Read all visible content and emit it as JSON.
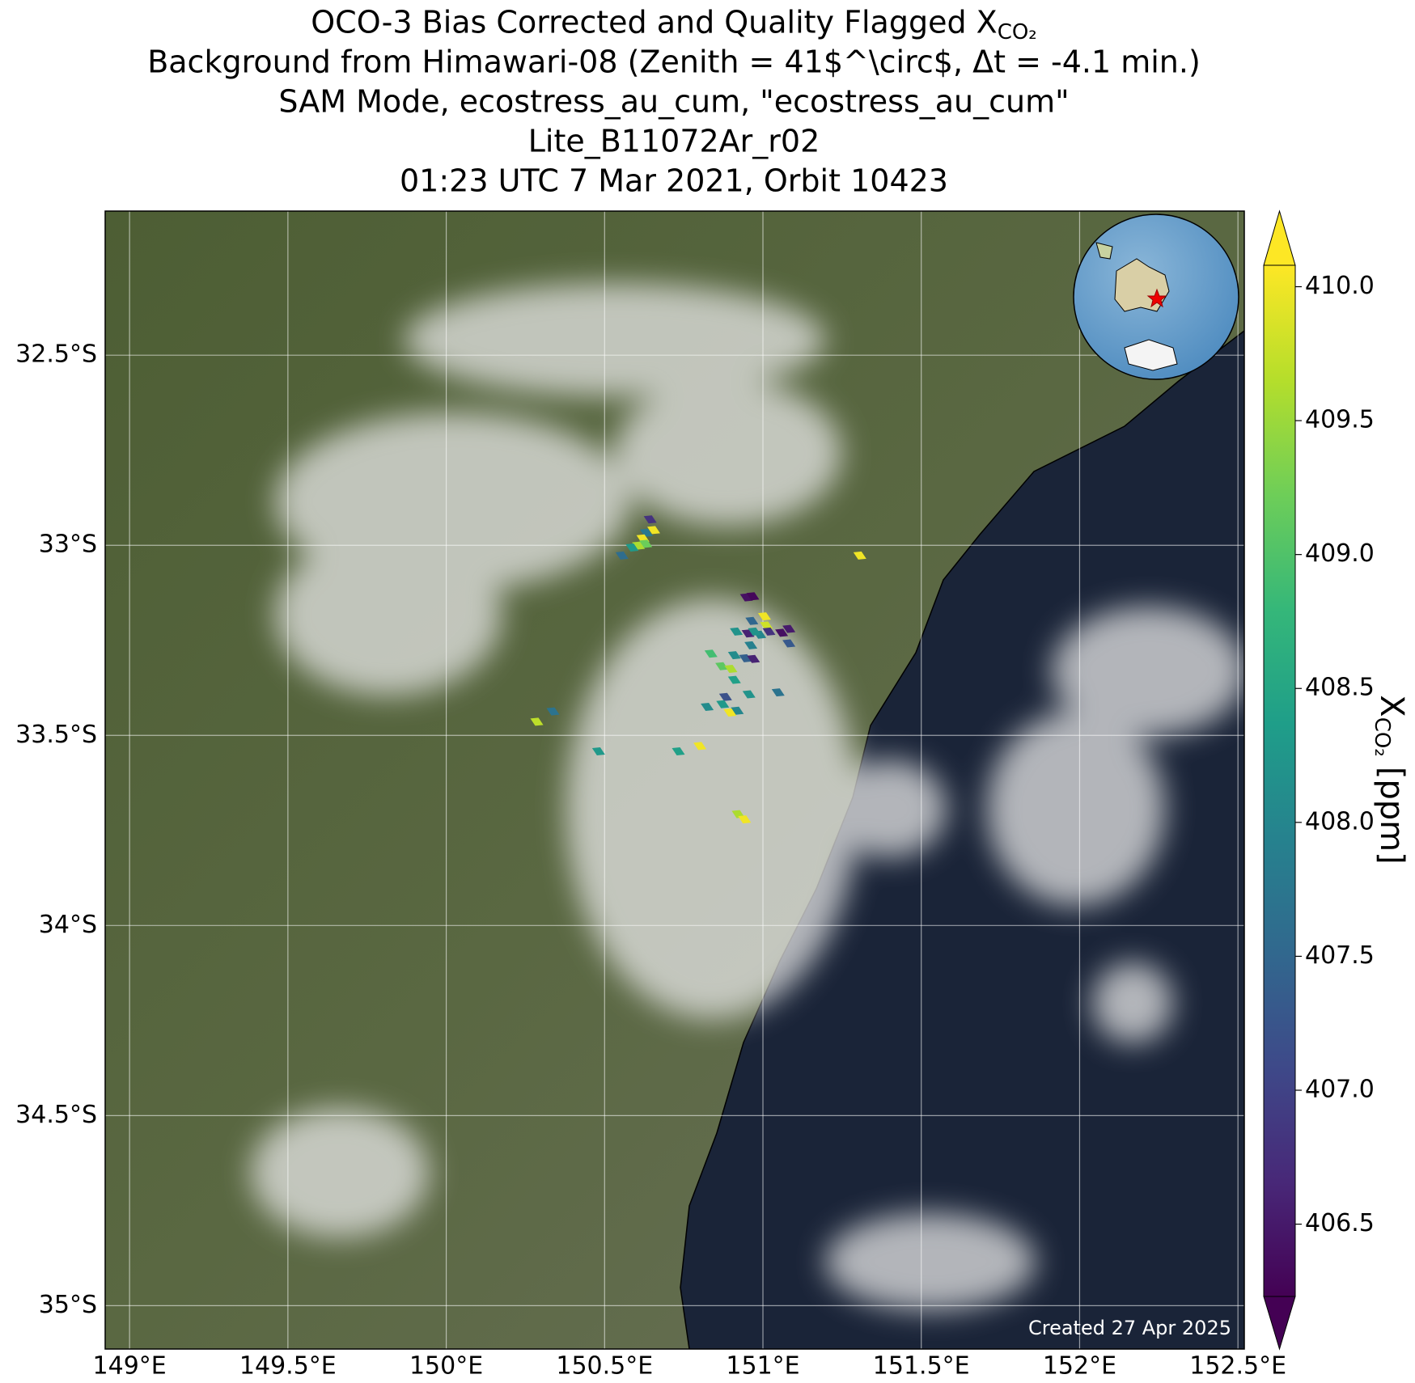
{
  "chart_data": {
    "type": "scatter",
    "title": [
      "OCO-3 Bias Corrected and Quality Flagged X",
      "Background from Himawari-08 (Zenith = 41$^\\circ$, Δt = -4.1 min.)",
      "SAM Mode, ecostress_au_cum, \"ecostress_au_cum\"",
      "Lite_B11072Ar_r02",
      "01:23 UTC 7 Mar 2021, Orbit 10423"
    ],
    "title_subscript": "CO₂",
    "colorbar_label": {
      "symbol": "X",
      "subscript": "CO₂",
      "unit": "[ppm]"
    },
    "footer": "Created 27 Apr 2025",
    "colormap": "viridis",
    "clim": [
      406.23,
      410.08
    ],
    "cticks": [
      406.5,
      {
        "value": 407,
        "label": "407.0"
      },
      407.5,
      {
        "value": 408,
        "label": "408.0"
      },
      408.5,
      {
        "value": 409,
        "label": "409.0"
      },
      409.5,
      {
        "value": 410,
        "label": "410.0"
      }
    ],
    "xlim": [
      148.923,
      152.52
    ],
    "ylim": [
      -35.114,
      -32.121
    ],
    "xticks": [
      {
        "value": 149,
        "label": "149°E"
      },
      {
        "value": 149.5,
        "label": "149.5°E"
      },
      {
        "value": 150,
        "label": "150°E"
      },
      {
        "value": 150.5,
        "label": "150.5°E"
      },
      {
        "value": 151,
        "label": "151°E"
      },
      {
        "value": 151.5,
        "label": "151.5°E"
      },
      {
        "value": 152,
        "label": "152°E"
      },
      {
        "value": 152.5,
        "label": "152.5°E"
      }
    ],
    "yticks": [
      {
        "value": -32.5,
        "label": "32.5°S"
      },
      {
        "value": -33,
        "label": "33°S"
      },
      {
        "value": -33.5,
        "label": "33.5°S"
      },
      {
        "value": -34,
        "label": "34°S"
      },
      {
        "value": -34.5,
        "label": "34.5°S"
      },
      {
        "value": -35,
        "label": "35°S"
      }
    ],
    "grid": true,
    "x": [
      150.644,
      150.632,
      150.655,
      150.621,
      150.607,
      150.63,
      150.587,
      150.555,
      151.306,
      150.948,
      150.968,
      151.005,
      151.011,
      150.965,
      150.99,
      150.953,
      150.973,
      151.082,
      151.059,
      151.019,
      150.916,
      150.962,
      151.082,
      150.836,
      150.91,
      150.87,
      150.899,
      150.945,
      150.97,
      150.91,
      151.048,
      150.956,
      150.882,
      150.824,
      150.873,
      150.919,
      150.896,
      150.337,
      150.286,
      150.481,
      150.801,
      150.733,
      150.922,
      150.942
    ],
    "y": [
      -32.932,
      -32.967,
      -32.96,
      -32.982,
      -33.001,
      -32.996,
      -33.006,
      -33.027,
      -33.027,
      -33.137,
      -33.134,
      -33.187,
      -33.211,
      -33.199,
      -33.235,
      -33.232,
      -33.227,
      -33.22,
      -33.23,
      -33.227,
      -33.227,
      -33.263,
      -33.258,
      -33.285,
      -33.289,
      -33.318,
      -33.325,
      -33.297,
      -33.299,
      -33.354,
      -33.387,
      -33.392,
      -33.399,
      -33.425,
      -33.418,
      -33.435,
      -33.44,
      -33.437,
      -33.464,
      -33.542,
      -33.528,
      -33.542,
      -33.707,
      -33.721
    ],
    "values": [
      406.8,
      407.8,
      410.0,
      410.0,
      409.6,
      409.2,
      408.3,
      407.6,
      410.0,
      406.4,
      406.3,
      410.0,
      409.8,
      407.5,
      408.0,
      406.6,
      408.2,
      406.5,
      406.4,
      406.8,
      408.2,
      407.9,
      407.3,
      408.9,
      408.1,
      409.1,
      409.6,
      407.4,
      406.6,
      408.4,
      407.7,
      408.2,
      407.2,
      408.1,
      408.3,
      408.0,
      410.0,
      407.7,
      409.7,
      408.3,
      410.0,
      408.4,
      409.6,
      410.0
    ]
  }
}
